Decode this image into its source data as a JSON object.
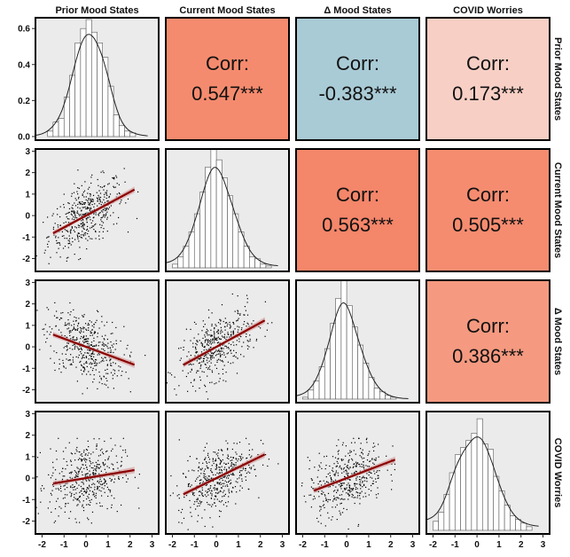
{
  "chart_data": {
    "type": "pairs-matrix",
    "variables": [
      "Prior Mood States",
      "Current Mood States",
      "Δ Mood States",
      "COVID Worries"
    ],
    "corr_label": "Corr:",
    "correlations": [
      {
        "row": 0,
        "col": 1,
        "value": "0.547***",
        "color": "#f58b6e"
      },
      {
        "row": 0,
        "col": 2,
        "value": "-0.383***",
        "color": "#a9cbd6"
      },
      {
        "row": 0,
        "col": 3,
        "value": "0.173***",
        "color": "#f7cfc4"
      },
      {
        "row": 1,
        "col": 2,
        "value": "0.563***",
        "color": "#f4866a"
      },
      {
        "row": 1,
        "col": 3,
        "value": "0.505***",
        "color": "#f58c70"
      },
      {
        "row": 2,
        "col": 3,
        "value": "0.386***",
        "color": "#f59a80"
      }
    ],
    "x_ticks": [
      "-2",
      "-1",
      "0",
      "1",
      "2",
      "3"
    ],
    "xlim": [
      -2.3,
      3.3
    ],
    "density_yticks": [
      "0.0",
      "0.2",
      "0.4",
      "0.6"
    ],
    "density_ylim": [
      -0.02,
      0.66
    ],
    "scatter_yticks": [
      "-2",
      "-1",
      "0",
      "1",
      "2",
      "3"
    ],
    "scatter_ylim": [
      -2.6,
      3.1
    ],
    "regression": [
      {
        "row": 1,
        "col": 0,
        "slope": 0.55,
        "intercept": 0.0
      },
      {
        "row": 2,
        "col": 0,
        "slope": -0.38,
        "intercept": 0.0
      },
      {
        "row": 2,
        "col": 1,
        "slope": 0.56,
        "intercept": 0.0
      },
      {
        "row": 3,
        "col": 0,
        "slope": 0.17,
        "intercept": 0.0
      },
      {
        "row": 3,
        "col": 1,
        "slope": 0.5,
        "intercept": 0.0
      },
      {
        "row": 3,
        "col": 2,
        "slope": 0.39,
        "intercept": 0.0
      }
    ],
    "histogram_bin_edges": [
      -2.0,
      -1.75,
      -1.5,
      -1.25,
      -1.0,
      -0.75,
      -0.5,
      -0.25,
      0.0,
      0.25,
      0.5,
      0.75,
      1.0,
      1.25,
      1.5,
      1.75,
      2.0,
      2.25,
      2.5
    ],
    "histograms": [
      {
        "var": 0,
        "heights": [
          0.0,
          0.03,
          0.08,
          0.1,
          0.22,
          0.34,
          0.52,
          0.6,
          0.65,
          0.58,
          0.52,
          0.44,
          0.28,
          0.12,
          0.06,
          0.03,
          0.02,
          0.0
        ]
      },
      {
        "var": 1,
        "heights": [
          0.02,
          0.06,
          0.12,
          0.2,
          0.3,
          0.42,
          0.56,
          0.66,
          0.6,
          0.5,
          0.4,
          0.3,
          0.2,
          0.12,
          0.06,
          0.05,
          0.02,
          0.01
        ]
      },
      {
        "var": 2,
        "heights": [
          0.01,
          0.05,
          0.1,
          0.18,
          0.28,
          0.42,
          0.56,
          0.68,
          0.52,
          0.4,
          0.3,
          0.2,
          0.12,
          0.06,
          0.04,
          0.02,
          0.01,
          0.0
        ]
      },
      {
        "var": 3,
        "heights": [
          0.05,
          0.1,
          0.2,
          0.32,
          0.42,
          0.46,
          0.5,
          0.54,
          0.62,
          0.48,
          0.45,
          0.3,
          0.22,
          0.14,
          0.08,
          0.06,
          0.04,
          0.02
        ]
      }
    ],
    "scatter_point_count": 450,
    "ceiling_value": 1.85,
    "colors": {
      "panel_bg": "#ebebeb",
      "panel_border": "#000000",
      "regression_line": "#8b0000",
      "regression_band": "#d6a0a0",
      "points": "#000000",
      "bars": "#ffffff"
    }
  }
}
